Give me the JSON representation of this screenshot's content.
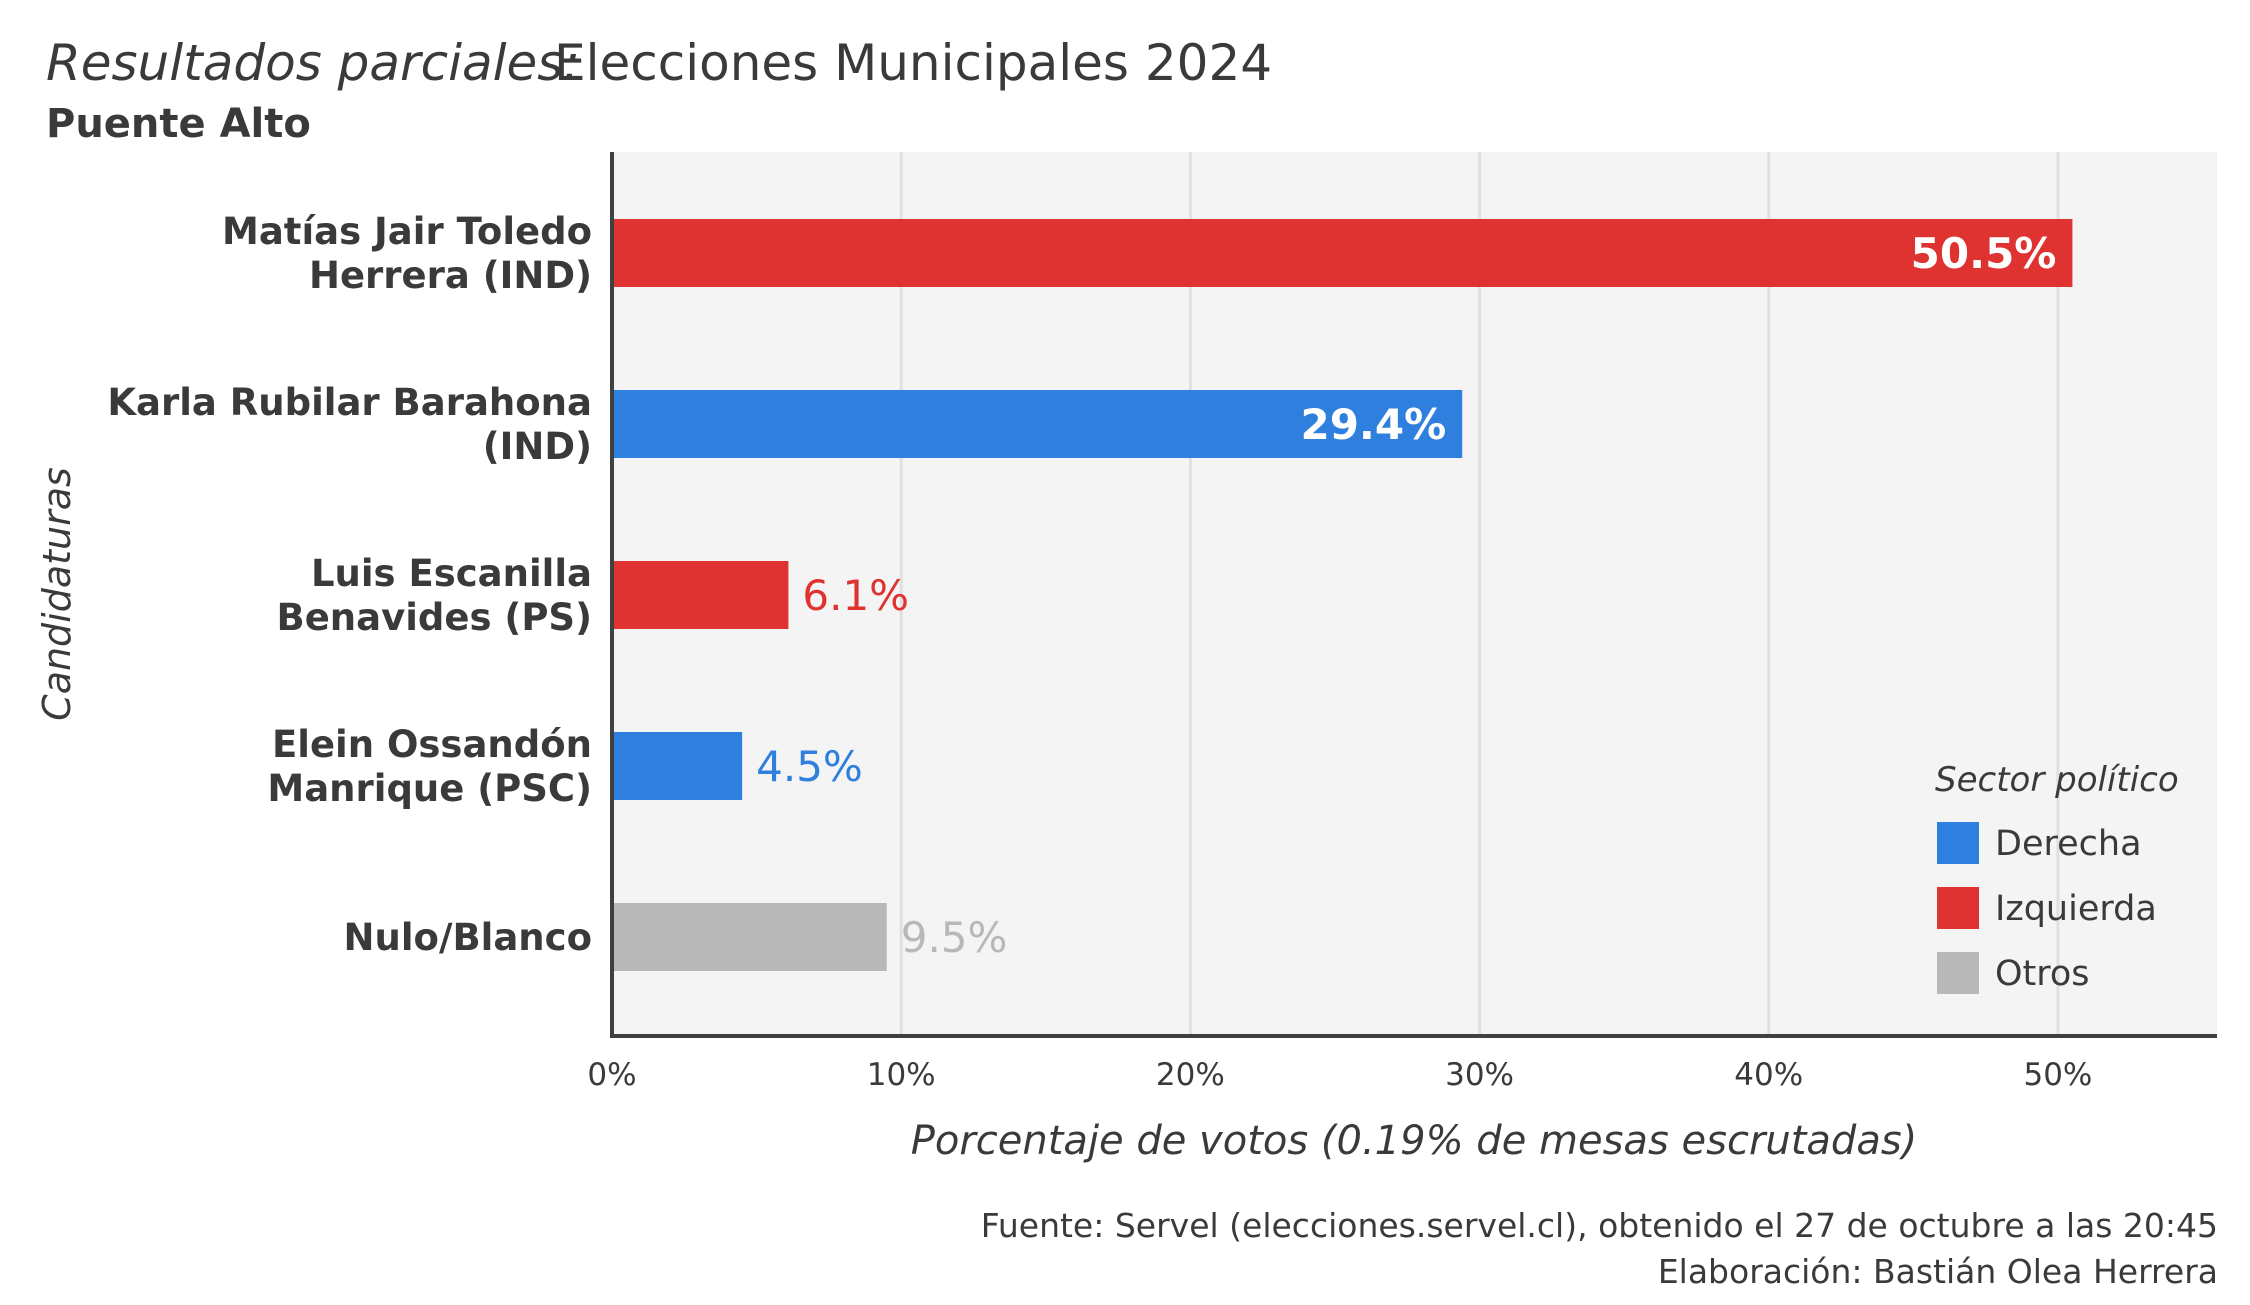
{
  "title": {
    "italic_part": "Resultados  parciales:",
    "regular_part": "Elecciones Municipales 2024",
    "subtitle": "Puente Alto"
  },
  "chart_data": {
    "type": "bar",
    "orientation": "horizontal",
    "categories": [
      [
        "Matías Jair Toledo",
        "Herrera (IND)"
      ],
      [
        "Karla Rubilar Barahona",
        "(IND)"
      ],
      [
        "Luis Escanilla",
        "Benavides (PS)"
      ],
      [
        "Elein Ossandón",
        "Manrique (PSC)"
      ],
      [
        "Nulo/Blanco"
      ]
    ],
    "values": [
      50.5,
      29.4,
      6.1,
      4.5,
      9.5
    ],
    "value_labels": [
      "50.5%",
      "29.4%",
      "6.1%",
      "4.5%",
      "9.5%"
    ],
    "sectors": [
      "Izquierda",
      "Derecha",
      "Izquierda",
      "Derecha",
      "Otros"
    ],
    "xlabel": "Porcentaje de votos (0.19% de mesas escrutadas)",
    "ylabel": "Candidaturas",
    "xlim": [
      0,
      55.5
    ],
    "xticks": [
      0,
      10,
      20,
      30,
      40,
      50
    ],
    "xtick_labels": [
      "0%",
      "10%",
      "20%",
      "30%",
      "40%",
      "50%"
    ],
    "grid": true,
    "legend": {
      "title": "Sector político",
      "position": "bottom-right",
      "entries": [
        {
          "name": "Derecha",
          "color": "#2f80de"
        },
        {
          "name": "Izquierda",
          "color": "#de3330"
        },
        {
          "name": "Otros",
          "color": "#b8b8b8"
        }
      ]
    }
  },
  "caption": {
    "line1": "Fuente: Servel (elecciones.servel.cl), obtenido el 27 de octubre a las 20:45",
    "line2": "Elaboración: Bastián Olea Herrera"
  }
}
